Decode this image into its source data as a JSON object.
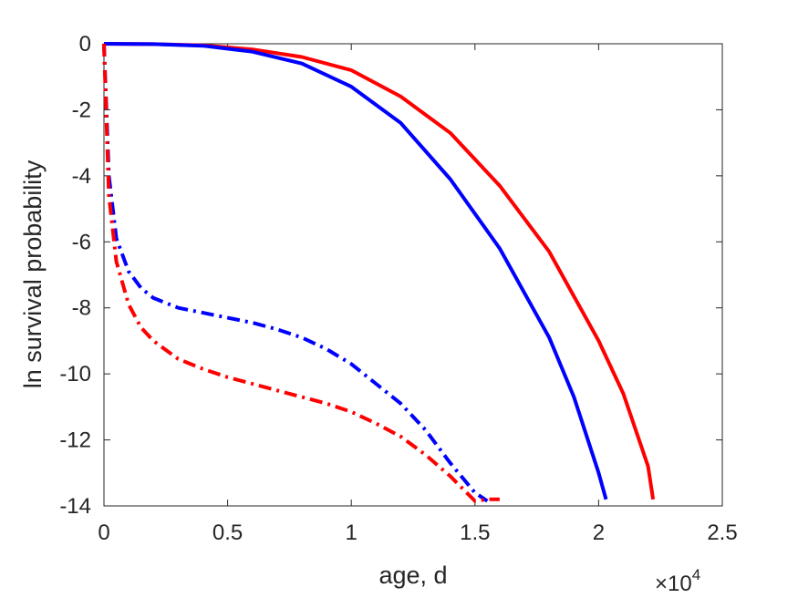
{
  "chart_data": {
    "type": "line",
    "title": "",
    "xlabel": "age, d",
    "ylabel": "ln survival probability",
    "x_exponent_label": {
      "base": "×10",
      "exponent": "4"
    },
    "xlim": [
      0,
      2.5
    ],
    "ylim": [
      -14,
      0
    ],
    "x_ticks": [
      "0",
      "0.5",
      "1",
      "1.5",
      "2",
      "2.5"
    ],
    "y_ticks": [
      "0",
      "-2",
      "-4",
      "-6",
      "-8",
      "-10",
      "-12",
      "-14"
    ],
    "x_tick_values": [
      0,
      0.5,
      1,
      1.5,
      2,
      2.5
    ],
    "y_tick_values": [
      0,
      -2,
      -4,
      -6,
      -8,
      -10,
      -12,
      -14
    ],
    "grid": false,
    "series": [
      {
        "color": "#ff0000",
        "style": "solid",
        "x": [
          0,
          0.2,
          0.4,
          0.6,
          0.8,
          1.0,
          1.2,
          1.4,
          1.6,
          1.8,
          2.0,
          2.1,
          2.2,
          2.22
        ],
        "y": [
          0,
          -0.01,
          -0.05,
          -0.17,
          -0.4,
          -0.8,
          -1.6,
          -2.7,
          -4.3,
          -6.3,
          -9.0,
          -10.6,
          -12.8,
          -13.8
        ]
      },
      {
        "color": "#0000ff",
        "style": "solid",
        "x": [
          0,
          0.2,
          0.4,
          0.6,
          0.8,
          1.0,
          1.2,
          1.4,
          1.6,
          1.8,
          1.9,
          2.0,
          2.03
        ],
        "y": [
          0,
          -0.01,
          -0.06,
          -0.24,
          -0.6,
          -1.3,
          -2.4,
          -4.1,
          -6.2,
          -8.9,
          -10.7,
          -13.0,
          -13.8
        ]
      },
      {
        "color": "#0000ff",
        "style": "dashdot",
        "x": [
          0,
          0.02,
          0.05,
          0.1,
          0.15,
          0.2,
          0.3,
          0.4,
          0.5,
          0.6,
          0.7,
          0.8,
          0.9,
          1.0,
          1.1,
          1.2,
          1.3,
          1.4,
          1.5,
          1.55
        ],
        "y": [
          0,
          -4.0,
          -5.9,
          -6.9,
          -7.4,
          -7.7,
          -8.0,
          -8.15,
          -8.3,
          -8.45,
          -8.65,
          -8.9,
          -9.25,
          -9.7,
          -10.3,
          -10.9,
          -11.7,
          -12.7,
          -13.6,
          -13.85
        ]
      },
      {
        "color": "#ff0000",
        "style": "dashdot",
        "x": [
          0,
          0.02,
          0.05,
          0.1,
          0.15,
          0.2,
          0.3,
          0.4,
          0.5,
          0.6,
          0.7,
          0.8,
          0.9,
          1.0,
          1.1,
          1.2,
          1.3,
          1.4,
          1.5,
          1.55,
          1.6
        ],
        "y": [
          0,
          -4.6,
          -6.6,
          -7.9,
          -8.6,
          -9.0,
          -9.55,
          -9.85,
          -10.1,
          -10.3,
          -10.5,
          -10.7,
          -10.9,
          -11.15,
          -11.5,
          -11.9,
          -12.45,
          -13.1,
          -13.85,
          -13.8,
          -13.8
        ]
      }
    ]
  }
}
